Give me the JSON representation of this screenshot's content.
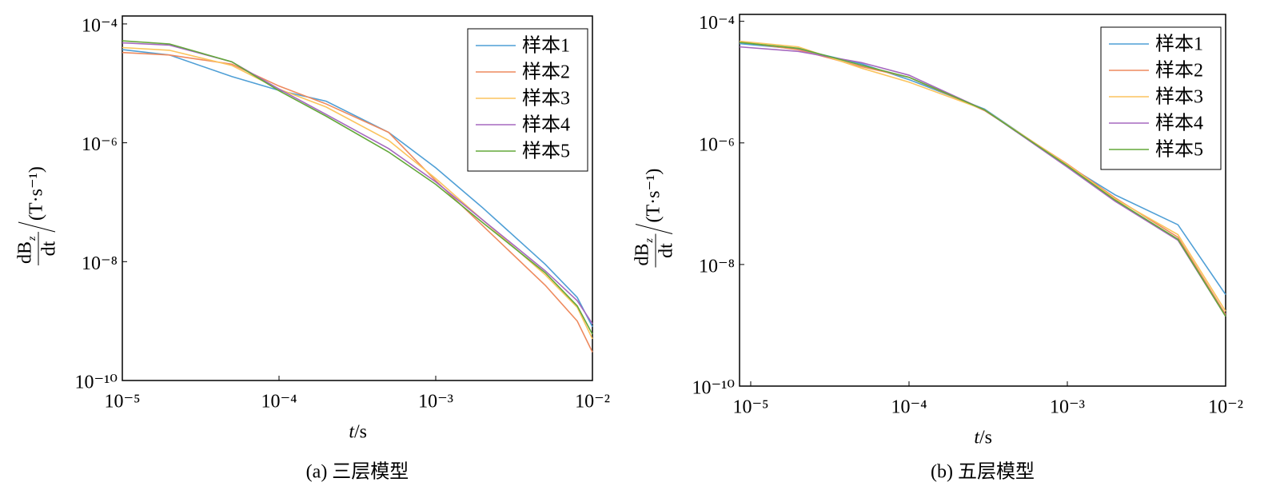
{
  "chart_data": [
    {
      "type": "line",
      "caption": "(a) 三层模型",
      "xscale": "log",
      "yscale": "log",
      "legend": "upper right",
      "x_label": {
        "variable": "t",
        "unit": "/s"
      },
      "y_label": {
        "numerator": "dB",
        "subscript": "z",
        "denominator": "dt",
        "unit": "(T·s⁻¹)"
      },
      "xlim": [
        1e-05,
        0.01
      ],
      "ylim": [
        1e-10,
        0.000136
      ],
      "xticks": [
        {
          "value": 1e-05,
          "label": "10⁻⁵"
        },
        {
          "value": 0.0001,
          "label": "10⁻⁴"
        },
        {
          "value": 0.001,
          "label": "10⁻³"
        },
        {
          "value": 0.01,
          "label": "10⁻²"
        }
      ],
      "yticks": [
        {
          "value": 1e-10,
          "label": "10⁻¹⁰"
        },
        {
          "value": 1e-08,
          "label": "10⁻⁸"
        },
        {
          "value": 1e-06,
          "label": "10⁻⁶"
        },
        {
          "value": 0.0001,
          "label": "10⁻⁴"
        }
      ],
      "x": [
        1e-05,
        2e-05,
        5e-05,
        0.0001,
        0.0002,
        0.0005,
        0.001,
        0.002,
        0.005,
        0.008,
        0.01
      ],
      "series": [
        {
          "name": "样本1",
          "color": "#4f9fd6",
          "values": [
            3.7e-05,
            3e-05,
            1.3e-05,
            7.6e-06,
            5e-06,
            1.5e-06,
            3.8e-07,
            8e-08,
            9e-09,
            2.5e-09,
            8e-10
          ]
        },
        {
          "name": "样本2",
          "color": "#ee8a5e",
          "values": [
            3.3e-05,
            3e-05,
            2.1e-05,
            9e-06,
            4.5e-06,
            1.5e-06,
            2.3e-07,
            4e-08,
            4e-09,
            1e-09,
            3e-10
          ]
        },
        {
          "name": "样本3",
          "color": "#fbc45e",
          "values": [
            4e-05,
            3.6e-05,
            2e-05,
            8e-06,
            4e-06,
            1.1e-06,
            2.5e-07,
            5e-08,
            6e-09,
            1.7e-09,
            5e-10
          ]
        },
        {
          "name": "样本4",
          "color": "#a568bf",
          "values": [
            4.8e-05,
            4.4e-05,
            2.3e-05,
            8e-06,
            3e-06,
            8e-07,
            2.2e-07,
            5e-08,
            7e-09,
            2.2e-09,
            9e-10
          ]
        },
        {
          "name": "样本5",
          "color": "#63a83a",
          "values": [
            5.2e-05,
            4.6e-05,
            2.3e-05,
            7.5e-06,
            2.8e-06,
            7e-07,
            2e-07,
            4.5e-08,
            6.5e-09,
            1.8e-09,
            6e-10
          ]
        }
      ]
    },
    {
      "type": "line",
      "caption": "(b) 五层模型",
      "xscale": "log",
      "yscale": "log",
      "legend": "upper right",
      "x_label": {
        "variable": "t",
        "unit": "/s"
      },
      "y_label": {
        "numerator": "dB",
        "subscript": "z",
        "denominator": "dt",
        "unit": "(T·s⁻¹)"
      },
      "xlim": [
        8.5e-06,
        0.01
      ],
      "ylim": [
        1e-10,
        0.00013
      ],
      "xticks": [
        {
          "value": 1e-05,
          "label": "10⁻⁵"
        },
        {
          "value": 0.0001,
          "label": "10⁻⁴"
        },
        {
          "value": 0.001,
          "label": "10⁻³"
        },
        {
          "value": 0.01,
          "label": "10⁻²"
        }
      ],
      "yticks": [
        {
          "value": 1e-10,
          "label": "10⁻¹⁰"
        },
        {
          "value": 1e-08,
          "label": "10⁻⁸"
        },
        {
          "value": 1e-06,
          "label": "10⁻⁶"
        },
        {
          "value": 0.0001,
          "label": "10⁻⁴"
        }
      ],
      "x": [
        8.5e-06,
        2e-05,
        5e-05,
        0.0001,
        0.0003,
        0.001,
        0.002,
        0.005,
        0.01
      ],
      "series": [
        {
          "name": "样本1",
          "color": "#4f9fd6",
          "values": [
            4.3e-05,
            3.5e-05,
            2e-05,
            1.1e-05,
            3.6e-06,
            4.3e-07,
            1.4e-07,
            4.5e-08,
            3.2e-09
          ]
        },
        {
          "name": "样本2",
          "color": "#ee8a5e",
          "values": [
            4.6e-05,
            3.4e-05,
            1.8e-05,
            1.2e-05,
            3.4e-06,
            4.5e-07,
            1.25e-07,
            2.8e-08,
            1.5e-09
          ]
        },
        {
          "name": "样本3",
          "color": "#fbc45e",
          "values": [
            4.7e-05,
            3.8e-05,
            1.7e-05,
            1e-05,
            3.5e-06,
            4.4e-07,
            1.2e-07,
            3.1e-08,
            1.7e-09
          ]
        },
        {
          "name": "样本4",
          "color": "#a568bf",
          "values": [
            3.8e-05,
            3.2e-05,
            2.1e-05,
            1.3e-05,
            3.5e-06,
            4e-07,
            1.1e-07,
            2.5e-08,
            1.4e-09
          ]
        },
        {
          "name": "样本5",
          "color": "#63a83a",
          "values": [
            4.5e-05,
            3.6e-05,
            1.9e-05,
            1.2e-05,
            3.5e-06,
            4.2e-07,
            1.15e-07,
            2.6e-08,
            1.4e-09
          ]
        }
      ]
    }
  ]
}
